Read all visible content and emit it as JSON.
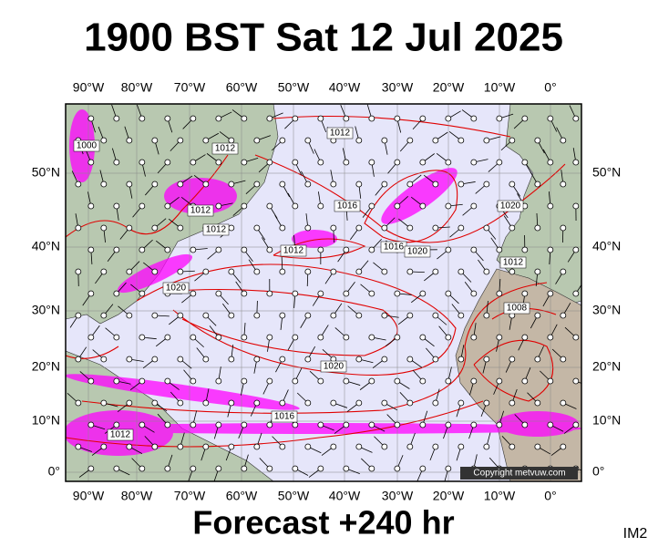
{
  "header": {
    "title": "1900 BST Sat 12 Jul 2025"
  },
  "map": {
    "longitude_labels": [
      "90°W",
      "80°W",
      "70°W",
      "60°W",
      "50°W",
      "40°W",
      "30°W",
      "20°W",
      "10°W",
      "0°"
    ],
    "latitude_labels": [
      "50°N",
      "40°N",
      "30°N",
      "20°N",
      "10°N",
      "0°"
    ],
    "isobar_labels": [
      "1012",
      "1012",
      "1012",
      "1016",
      "1012",
      "1016",
      "1020",
      "1012",
      "1020",
      "1012",
      "1008",
      "1020",
      "1016",
      "1012",
      "1000",
      "1020"
    ],
    "copyright": "Copyright metvuw.com"
  },
  "footer": {
    "caption": "Forecast +240 hr",
    "code": "IM2"
  }
}
